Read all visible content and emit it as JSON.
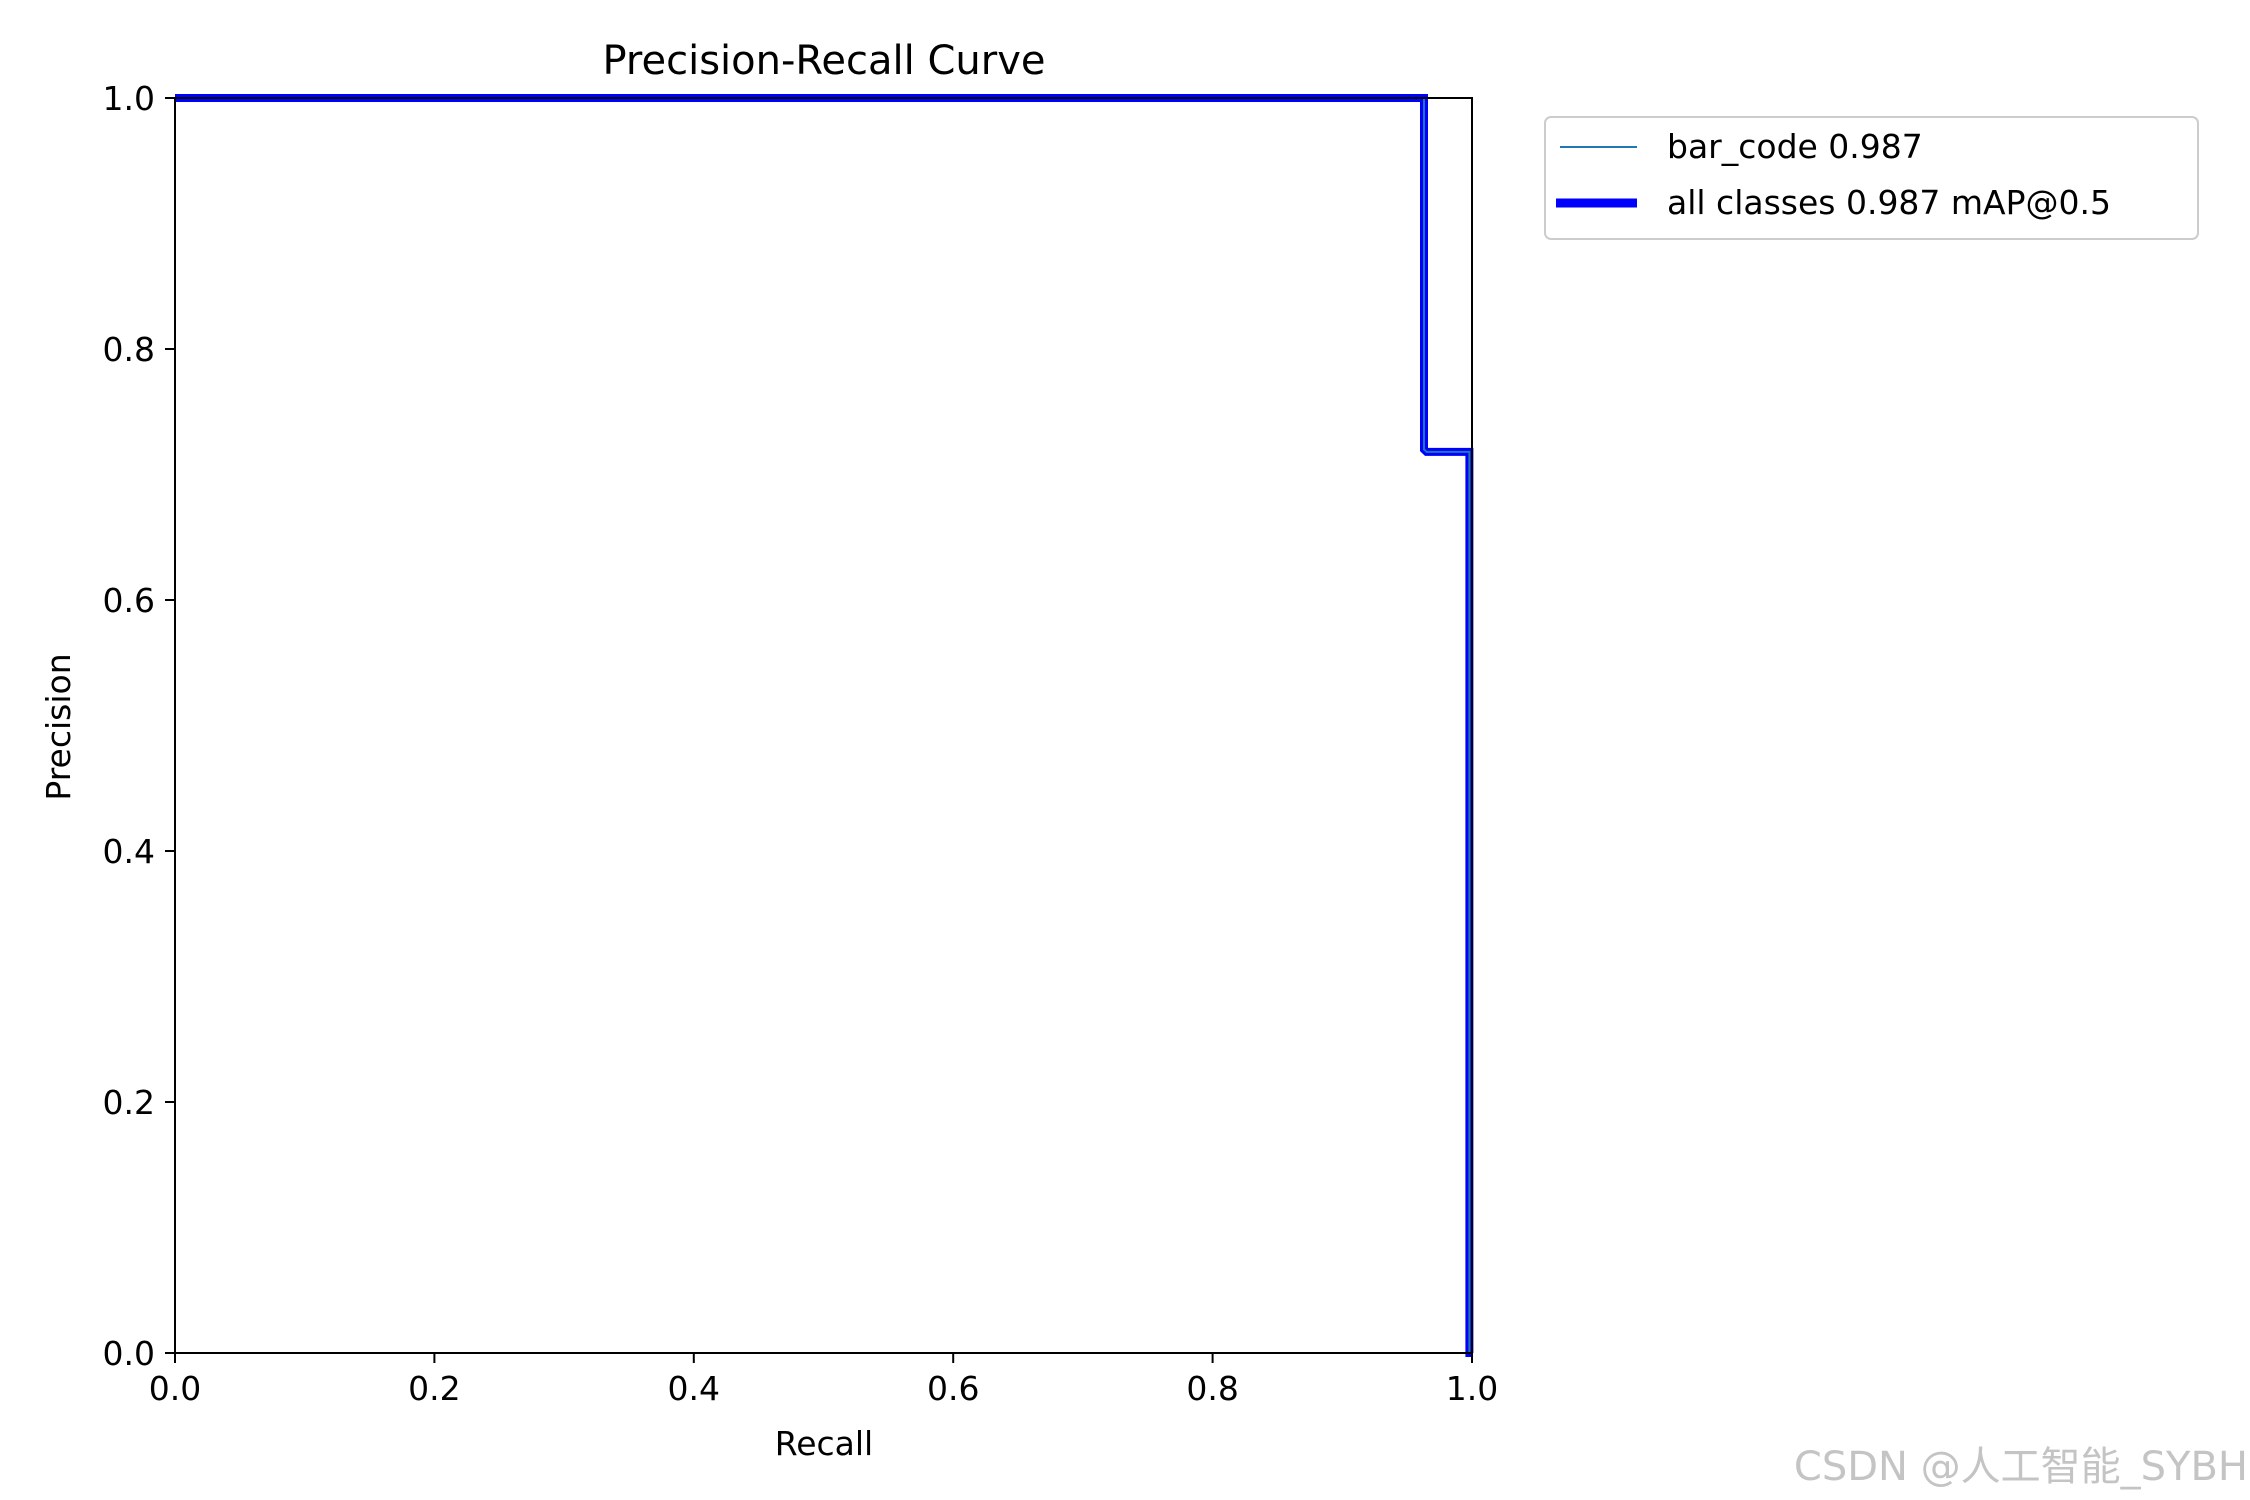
{
  "chart_data": {
    "type": "line",
    "title": "Precision-Recall Curve",
    "xlabel": "Recall",
    "ylabel": "Precision",
    "xlim": [
      0,
      1
    ],
    "ylim": [
      0,
      1
    ],
    "xticks": [
      "0.0",
      "0.2",
      "0.4",
      "0.6",
      "0.8",
      "1.0"
    ],
    "yticks": [
      "0.0",
      "0.2",
      "0.4",
      "0.6",
      "0.8",
      "1.0"
    ],
    "grid": false,
    "legend_position": "outside-top-right",
    "series": [
      {
        "name": "bar_code 0.987",
        "color": "#1f77b4",
        "x": [
          0,
          0.963,
          0.963,
          0.965,
          0.965,
          0.998,
          0.998,
          1.0
        ],
        "y": [
          1.0,
          1.0,
          0.72,
          0.718,
          0.718,
          0.718,
          0.0,
          0.0
        ]
      },
      {
        "name": "all classes 0.987 mAP@0.5",
        "color": "#0000ff",
        "x": [
          0,
          0.963,
          0.963,
          0.965,
          0.965,
          0.998,
          0.998,
          1.0
        ],
        "y": [
          1.0,
          1.0,
          0.72,
          0.718,
          0.718,
          0.718,
          0.0,
          0.0
        ]
      }
    ]
  },
  "watermark": "CSDN @人工智能_SYBH"
}
